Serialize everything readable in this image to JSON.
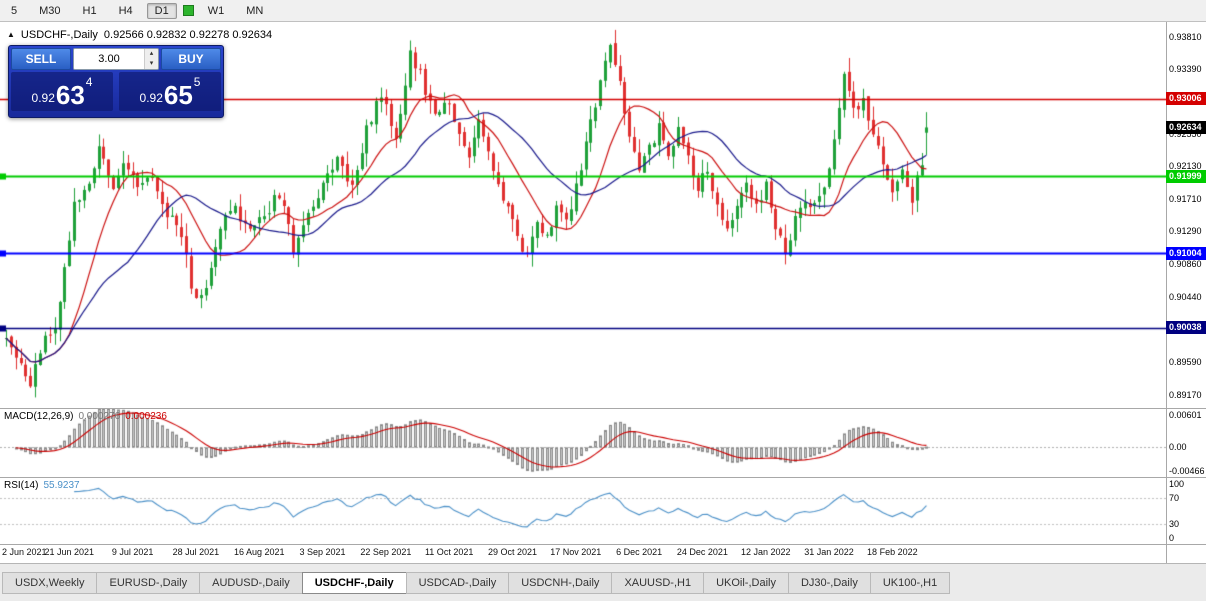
{
  "toolbar": {
    "periods": [
      {
        "label": "5",
        "active": false
      },
      {
        "label": "M30",
        "active": false
      },
      {
        "label": "H1",
        "active": false
      },
      {
        "label": "H4",
        "active": false
      },
      {
        "label": "D1",
        "active": true
      },
      {
        "label": "W1",
        "active": false
      },
      {
        "label": "MN",
        "active": false
      }
    ]
  },
  "chart": {
    "symbol_label": "USDCHF-,Daily",
    "ohlc_text": "0.92566 0.92832 0.92278 0.92634",
    "price_axis_labels": [
      "0.93810",
      "0.93390",
      "0.92970",
      "0.92550",
      "0.92130",
      "0.91710",
      "0.91290",
      "0.90860",
      "0.90440",
      "0.90020",
      "0.89590",
      "0.89170"
    ],
    "price_range": {
      "min": 0.89,
      "max": 0.94
    },
    "horizontal_lines": [
      {
        "name": "resistance-line",
        "value": 0.93006,
        "label": "0.93006",
        "color": "#d40000",
        "width": 1.5,
        "marker": false
      },
      {
        "name": "mid-line",
        "value": 0.91999,
        "label": "0.91999",
        "color": "#00cc00",
        "width": 2,
        "marker": true
      },
      {
        "name": "support-line-1",
        "value": 0.91004,
        "label": "0.91004",
        "color": "#0000ff",
        "width": 2,
        "marker": true
      },
      {
        "name": "support-line-2",
        "value": 0.90038,
        "label": "0.90038",
        "color": "#000080",
        "width": 1.5,
        "marker": true
      }
    ],
    "current_price": {
      "value": 0.92634,
      "label": "0.92634",
      "color": "#000000"
    },
    "time_axis_labels": [
      "2 Jun 2021",
      "21 Jun 2021",
      "9 Jul 2021",
      "28 Jul 2021",
      "16 Aug 2021",
      "3 Sep 2021",
      "22 Sep 2021",
      "11 Oct 2021",
      "29 Oct 2021",
      "17 Nov 2021",
      "6 Dec 2021",
      "24 Dec 2021",
      "12 Jan 2022",
      "31 Jan 2022",
      "18 Feb 2022"
    ],
    "candle_up_color": "#1fa13a",
    "candle_down_color": "#e03030",
    "ma_fast_color": "#cc1111",
    "ma_slow_color": "#1a1a8c"
  },
  "trade_panel": {
    "sell_label": "SELL",
    "buy_label": "BUY",
    "volume": "3.00",
    "bid_prefix": "0.92",
    "bid_big": "63",
    "bid_sup": "4",
    "ask_prefix": "0.92",
    "ask_big": "65",
    "ask_sup": "5"
  },
  "indicators": {
    "macd": {
      "name": "MACD(12,26,9)",
      "value_main": "0.000276",
      "value_signal": "0.000236",
      "axis_labels": [
        "0.00601",
        "0.00",
        "-0.00466"
      ],
      "scale_max": 0.00601,
      "scale_min": -0.00466,
      "histogram_color": "#c8c8c8",
      "histogram_border": "#8a8a8a",
      "signal_color": "#cc0000"
    },
    "rsi": {
      "name": "RSI(14)",
      "value": "55.9237",
      "axis_labels": [
        "100",
        "70",
        "30",
        "0"
      ],
      "levels": [
        70,
        30
      ],
      "line_color": "#4a90c8"
    }
  },
  "tabs": [
    {
      "label": "USDX,Weekly",
      "active": false
    },
    {
      "label": "EURUSD-,Daily",
      "active": false
    },
    {
      "label": "AUDUSD-,Daily",
      "active": false
    },
    {
      "label": "USDCHF-,Daily",
      "active": true
    },
    {
      "label": "USDCAD-,Daily",
      "active": false
    },
    {
      "label": "USDCNH-,Daily",
      "active": false
    },
    {
      "label": "XAUUSD-,H1",
      "active": false
    },
    {
      "label": "UKOil-,Daily",
      "active": false
    },
    {
      "label": "DJ30-,Daily",
      "active": false
    },
    {
      "label": "UK100-,H1",
      "active": false
    }
  ],
  "chart_data": {
    "type": "candlestick",
    "symbol": "USDCHF",
    "period": "Daily",
    "visible_last_candle": {
      "open": 0.92566,
      "high": 0.92832,
      "low": 0.92278,
      "close": 0.92634
    },
    "bid": 0.92634,
    "ask": 0.92655,
    "y_range": [
      0.89,
      0.94
    ],
    "horizontal_levels": [
      0.93006,
      0.91999,
      0.91004,
      0.90038
    ],
    "x_labels": [
      "2 Jun 2021",
      "21 Jun 2021",
      "9 Jul 2021",
      "28 Jul 2021",
      "16 Aug 2021",
      "3 Sep 2021",
      "22 Sep 2021",
      "11 Oct 2021",
      "29 Oct 2021",
      "17 Nov 2021",
      "6 Dec 2021",
      "24 Dec 2021",
      "12 Jan 2022",
      "31 Jan 2022",
      "18 Feb 2022"
    ],
    "candle_count": 190,
    "seed": 11,
    "price_path": [
      [
        0,
        0.899
      ],
      [
        2,
        0.8966
      ],
      [
        5,
        0.8934
      ],
      [
        8,
        0.8986
      ],
      [
        10,
        0.9008
      ],
      [
        12,
        0.9082
      ],
      [
        14,
        0.9165
      ],
      [
        17,
        0.9185
      ],
      [
        19,
        0.9232
      ],
      [
        22,
        0.9185
      ],
      [
        24,
        0.9215
      ],
      [
        27,
        0.9192
      ],
      [
        30,
        0.9198
      ],
      [
        33,
        0.9155
      ],
      [
        36,
        0.9128
      ],
      [
        38,
        0.906
      ],
      [
        39,
        0.9042
      ],
      [
        41,
        0.9058
      ],
      [
        44,
        0.9138
      ],
      [
        47,
        0.9158
      ],
      [
        50,
        0.9128
      ],
      [
        53,
        0.9148
      ],
      [
        56,
        0.9178
      ],
      [
        59,
        0.9108
      ],
      [
        62,
        0.9152
      ],
      [
        65,
        0.9188
      ],
      [
        68,
        0.9222
      ],
      [
        71,
        0.9188
      ],
      [
        74,
        0.9262
      ],
      [
        77,
        0.9305
      ],
      [
        80,
        0.9248
      ],
      [
        83,
        0.9362
      ],
      [
        85,
        0.9332
      ],
      [
        87,
        0.9295
      ],
      [
        89,
        0.9278
      ],
      [
        91,
        0.9302
      ],
      [
        93,
        0.9255
      ],
      [
        95,
        0.9232
      ],
      [
        97,
        0.9272
      ],
      [
        99,
        0.9225
      ],
      [
        101,
        0.9185
      ],
      [
        103,
        0.9155
      ],
      [
        105,
        0.9122
      ],
      [
        107,
        0.9098
      ],
      [
        109,
        0.9142
      ],
      [
        111,
        0.9122
      ],
      [
        113,
        0.9162
      ],
      [
        115,
        0.9138
      ],
      [
        117,
        0.9185
      ],
      [
        119,
        0.9242
      ],
      [
        121,
        0.9292
      ],
      [
        124,
        0.9368
      ],
      [
        126,
        0.9322
      ],
      [
        128,
        0.9255
      ],
      [
        130,
        0.9212
      ],
      [
        132,
        0.9238
      ],
      [
        134,
        0.9262
      ],
      [
        136,
        0.9228
      ],
      [
        138,
        0.9258
      ],
      [
        140,
        0.9222
      ],
      [
        142,
        0.9188
      ],
      [
        144,
        0.9212
      ],
      [
        146,
        0.9162
      ],
      [
        148,
        0.9138
      ],
      [
        150,
        0.9162
      ],
      [
        152,
        0.9188
      ],
      [
        154,
        0.9162
      ],
      [
        156,
        0.9192
      ],
      [
        158,
        0.9138
      ],
      [
        160,
        0.9098
      ],
      [
        162,
        0.9142
      ],
      [
        164,
        0.9172
      ],
      [
        166,
        0.9158
      ],
      [
        168,
        0.9188
      ],
      [
        170,
        0.9245
      ],
      [
        172,
        0.9328
      ],
      [
        174,
        0.9282
      ],
      [
        176,
        0.9302
      ],
      [
        178,
        0.9252
      ],
      [
        180,
        0.9212
      ],
      [
        182,
        0.9185
      ],
      [
        184,
        0.9205
      ],
      [
        186,
        0.9172
      ],
      [
        188,
        0.9215
      ],
      [
        189,
        0.9263
      ]
    ],
    "wick_extremes": [
      {
        "i": 5,
        "low": 0.8926
      },
      {
        "i": 83,
        "high": 0.9376
      },
      {
        "i": 124,
        "high": 0.9372
      },
      {
        "i": 160,
        "low": 0.9086
      }
    ],
    "indicator_params": {
      "macd": [
        12,
        26,
        9
      ],
      "rsi": 14,
      "ma_fast": 12,
      "ma_slow": 26
    }
  }
}
